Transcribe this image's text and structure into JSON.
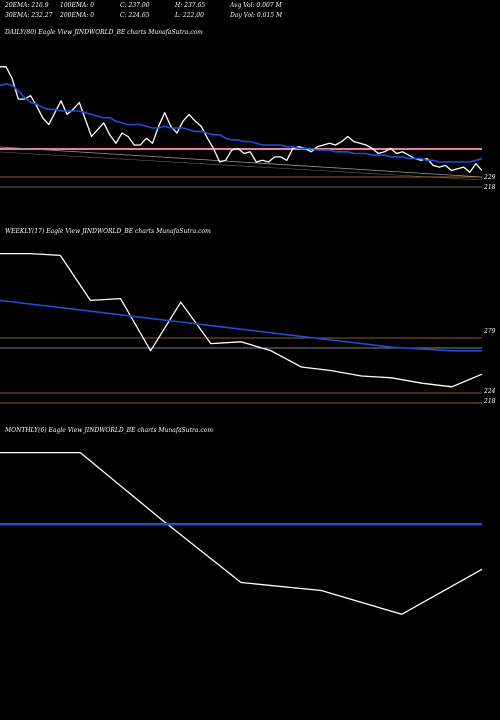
{
  "header": {
    "row1": [
      "20EMA: 216.9",
      "100EMA: 0",
      "C: 237.00",
      "H: 237.65",
      "Avg Vol: 0.007 M"
    ],
    "row2": [
      "30EMA: 232.27",
      "200EMA: 0",
      "C: 224.65",
      "L: 222.00",
      "Day Vol: 0.015 M"
    ]
  },
  "colors": {
    "background": "#000000",
    "price": "#ffffff",
    "ema": "#1a4fd6",
    "resistance": "#e8819a",
    "level": "#b8752f",
    "grey": "#aaaaaa"
  },
  "chart_data": [
    {
      "type": "line",
      "title": "DAILY(80) Eagle  View  JINDWORLD_BE charts MunafaSutra.com",
      "level_labels": [
        "229",
        "218"
      ],
      "series": [
        {
          "values": [
            0.96,
            0.96,
            0.89,
            0.77,
            0.77,
            0.79,
            0.73,
            0.66,
            0.62,
            0.69,
            0.76,
            0.68,
            0.71,
            0.75,
            0.65,
            0.55,
            0.59,
            0.63,
            0.56,
            0.51,
            0.57,
            0.55,
            0.5,
            0.5,
            0.54,
            0.51,
            0.61,
            0.69,
            0.61,
            0.57,
            0.64,
            0.68,
            0.64,
            0.61,
            0.54,
            0.48,
            0.4,
            0.41,
            0.47,
            0.48,
            0.45,
            0.46,
            0.4,
            0.41,
            0.4,
            0.43,
            0.43,
            0.41,
            0.48,
            0.49,
            0.48,
            0.46,
            0.49,
            0.5,
            0.51,
            0.5,
            0.52,
            0.55,
            0.52,
            0.51,
            0.5,
            0.48,
            0.45,
            0.46,
            0.48,
            0.45,
            0.46,
            0.44,
            0.42,
            0.41,
            0.42,
            0.38,
            0.37,
            0.38,
            0.35,
            0.36,
            0.37,
            0.34,
            0.39,
            0.35
          ]
        },
        {
          "values": [
            0.85,
            0.86,
            0.85,
            0.82,
            0.78,
            0.75,
            0.74,
            0.72,
            0.71,
            0.71,
            0.7,
            0.7,
            0.7,
            0.7,
            0.69,
            0.68,
            0.67,
            0.66,
            0.66,
            0.64,
            0.63,
            0.62,
            0.62,
            0.62,
            0.61,
            0.6,
            0.6,
            0.61,
            0.6,
            0.6,
            0.6,
            0.59,
            0.58,
            0.58,
            0.57,
            0.56,
            0.56,
            0.54,
            0.53,
            0.53,
            0.52,
            0.52,
            0.51,
            0.5,
            0.5,
            0.5,
            0.5,
            0.49,
            0.49,
            0.48,
            0.48,
            0.48,
            0.47,
            0.47,
            0.47,
            0.46,
            0.46,
            0.46,
            0.45,
            0.45,
            0.45,
            0.44,
            0.44,
            0.44,
            0.43,
            0.43,
            0.43,
            0.42,
            0.42,
            0.42,
            0.41,
            0.41,
            0.4,
            0.4,
            0.4,
            0.4,
            0.4,
            0.4,
            0.41,
            0.42
          ]
        }
      ]
    },
    {
      "type": "line",
      "title": "WEEKLY(17) Eagle  View  JINDWORLD_BE charts MunafaSutra.com",
      "level_labels": [
        "279",
        "224",
        "218"
      ],
      "series": [
        {
          "values": [
            0.98,
            0.98,
            0.97,
            0.72,
            0.73,
            0.44,
            0.71,
            0.48,
            0.49,
            0.44,
            0.35,
            0.33,
            0.3,
            0.29,
            0.26,
            0.24,
            0.31
          ]
        },
        {
          "values": [
            0.72,
            0.7,
            0.68,
            0.66,
            0.64,
            0.62,
            0.6,
            0.58,
            0.56,
            0.54,
            0.52,
            0.5,
            0.48,
            0.46,
            0.45,
            0.44,
            0.44
          ]
        }
      ]
    },
    {
      "type": "line",
      "title": "MONTHLY(6) Eagle  View  JINDWORLD_BE charts MunafaSutra.com",
      "level_labels": [],
      "series": [
        {
          "values": [
            0.99,
            0.99,
            0.74,
            0.5,
            0.47,
            0.38,
            0.55
          ]
        },
        {
          "values": [
            0.72,
            0.72,
            0.72,
            0.72,
            0.72,
            0.72,
            0.72
          ]
        }
      ]
    }
  ]
}
